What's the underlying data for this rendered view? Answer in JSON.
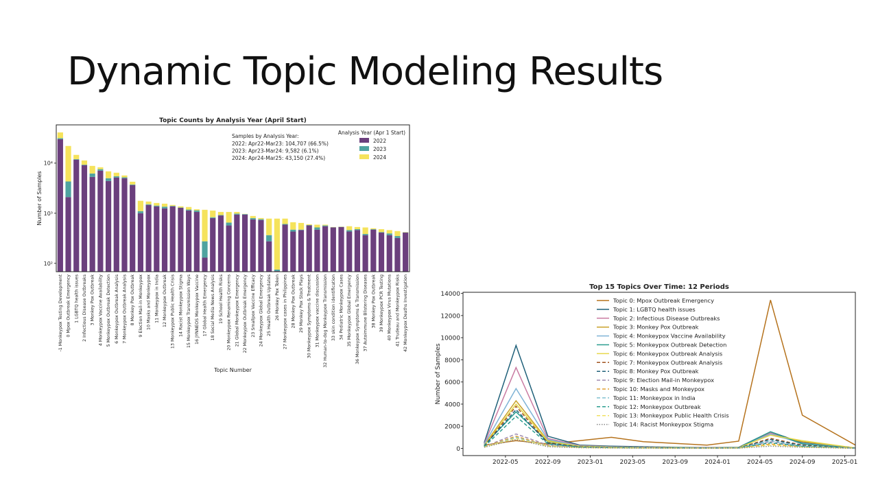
{
  "title": "Dynamic Topic Modeling Results",
  "chart_data": [
    {
      "type": "bar",
      "stacked": true,
      "log_scale": true,
      "grid": false,
      "title": "Topic Counts by Analysis Year (April Start)",
      "x_label": "Topic Number",
      "y_label": "Number of Samples",
      "categories": [
        "-1 Monkeypox Testing Development",
        "0 Mpox Outbreak Emergency",
        "1 LGBTQ health issues",
        "2 Infectious Disease Outbreaks",
        "3 Monkey Pox Outbreak",
        "4 Monkeypox Vaccine Availability",
        "5 Monkeypox Outbreak Detection",
        "6 Monkeypox Outbreak Analysis",
        "7 Monkeypox Outbreak Analysis",
        "8 Monkey Pox Outbreak",
        "9 Election Mail-in Monkeypox",
        "10 Masks and Monkeypox",
        "11 Monkeypox in India",
        "12 Monkeypox Outbreak",
        "13 Monkeypox Public Health Crisis",
        "14 Racist Monkeypox Stigma",
        "15 Monkeypox Transmission Ways",
        "16 JYNNEOS Monkeypox Vaccine",
        "17 Global Health Emergency",
        "18 Social Media News Analysis",
        "19 School Health Risks",
        "20 Monkeypox Renaming Concerns",
        "21 Global Monkeypox Emergency",
        "22 Monkeypox Outbreak Emergency",
        "23 Smallpox Vaccine Efficacy",
        "24 Monkeypox Global Emergency",
        "25 Health Outbreak Updates",
        "26 Monkey Pox Token",
        "27 Monkeypox cases in Philippines",
        "28 Monkey Pox Outbreak",
        "29 Monkey Pox Stock Plays",
        "30 Monkeypox Symptoms & Treatment",
        "31 Monkeypox vaccine discussion",
        "32 Human-to-dog Monkeypox Transmission",
        "33 skin condition identification",
        "34 Pediatric Monkeypox Cases",
        "35 Monkeypox Global Emergency",
        "36 Monkeypox Symptoms & Transmission",
        "37 Autoimmune Blistering Diseases",
        "38 Monkey Pox Outbreak",
        "39 Monkeypox PCR Testing",
        "40 Monkeypox Virus Mutations",
        "41 Trudeau and Monkeypox Risks",
        "42 Monkeypox Deaths Investigation"
      ],
      "series": [
        {
          "name": "2022",
          "color": "#6b3f7d",
          "values": [
            30000,
            2100,
            11700,
            9100,
            5300,
            7060,
            4400,
            5160,
            5000,
            3650,
            1000,
            1460,
            1370,
            1250,
            1370,
            1280,
            1130,
            1060,
            130,
            800,
            900,
            570,
            940,
            940,
            750,
            730,
            275,
            70,
            590,
            430,
            460,
            570,
            470,
            550,
            520,
            530,
            430,
            460,
            365,
            470,
            410,
            365,
            320,
            410
          ]
        },
        {
          "name": "2023",
          "color": "#4fa3a0",
          "values": [
            1500,
            2200,
            300,
            200,
            900,
            500,
            600,
            300,
            200,
            100,
            100,
            50,
            50,
            100,
            30,
            20,
            50,
            80,
            145,
            30,
            20,
            80,
            40,
            20,
            50,
            30,
            90,
            5,
            20,
            40,
            10,
            10,
            50,
            20,
            5,
            5,
            30,
            20,
            20,
            10,
            10,
            30,
            30,
            5
          ]
        },
        {
          "name": "2024",
          "color": "#f5e35c",
          "values": [
            9500,
            17700,
            2600,
            2000,
            2600,
            700,
            1850,
            970,
            470,
            500,
            670,
            200,
            180,
            200,
            60,
            70,
            150,
            60,
            895,
            300,
            140,
            410,
            80,
            10,
            80,
            40,
            415,
            705,
            170,
            190,
            170,
            20,
            70,
            20,
            5,
            5,
            90,
            50,
            135,
            20,
            60,
            65,
            90,
            5
          ]
        }
      ],
      "ylim": [
        68,
        58000
      ],
      "yticks": [
        {
          "value": 100,
          "label": "10²"
        },
        {
          "value": 1000,
          "label": "10³"
        },
        {
          "value": 10000,
          "label": "10⁴"
        }
      ],
      "legend": "upper right",
      "legend_title": "Analysis Year (Apr 1 Start)",
      "annotation": {
        "title": "Samples by Analysis Year:",
        "lines": [
          "2022: Apr22-Mar23: 104,707 (66.5%)",
          "2023: Apr23-Mar24: 9,582 (6.1%)",
          "2024: Apr24-Mar25: 43,150 (27.4%)"
        ]
      }
    },
    {
      "type": "line",
      "grid": false,
      "title": "Top 15 Topics Over Time: 12 Periods",
      "y_label": "Number of Samples",
      "x": [
        "2022-03",
        "2022-06",
        "2022-09",
        "2022-12",
        "2023-03",
        "2023-06",
        "2023-09",
        "2023-12",
        "2024-03",
        "2024-06",
        "2024-09",
        "2025-02"
      ],
      "xlim": [
        "2022-01",
        "2025-02"
      ],
      "xticks": [
        "2022-05",
        "2022-09",
        "2023-01",
        "2023-05",
        "2023-09",
        "2024-01",
        "2024-05",
        "2024-09",
        "2025-01"
      ],
      "ylim": [
        -650,
        14100
      ],
      "yticks": [
        0,
        2000,
        4000,
        6000,
        8000,
        10000,
        12000,
        14000
      ],
      "legend": "upper center",
      "series": [
        {
          "name": "Topic 0: Mpox Outbreak Emergency",
          "color": "#b5721c",
          "linestyle": "solid",
          "values": [
            300,
            700,
            400,
            700,
            1000,
            600,
            450,
            300,
            650,
            13400,
            3000,
            300
          ]
        },
        {
          "name": "Topic 1: LGBTQ health issues",
          "color": "#1f6079",
          "linestyle": "solid",
          "values": [
            500,
            9300,
            1100,
            300,
            200,
            150,
            100,
            80,
            100,
            1500,
            500,
            50
          ]
        },
        {
          "name": "Topic 2: Infectious Disease Outbreaks",
          "color": "#c97ba2",
          "linestyle": "solid",
          "values": [
            400,
            7300,
            900,
            250,
            150,
            100,
            80,
            60,
            80,
            1400,
            400,
            40
          ]
        },
        {
          "name": "Topic 3: Monkey Pox Outbreak",
          "color": "#c9a22a",
          "linestyle": "solid",
          "values": [
            300,
            4300,
            700,
            200,
            120,
            80,
            60,
            50,
            70,
            1200,
            600,
            50
          ]
        },
        {
          "name": "Topic 4: Monkeypox Vaccine Availability",
          "color": "#7fb3d6",
          "linestyle": "solid",
          "values": [
            350,
            5400,
            800,
            220,
            130,
            90,
            70,
            50,
            70,
            1300,
            450,
            40
          ]
        },
        {
          "name": "Topic 5: Monkeypox Outbreak Detection",
          "color": "#2a9d8f",
          "linestyle": "solid",
          "values": [
            300,
            3300,
            600,
            180,
            100,
            70,
            60,
            40,
            60,
            1500,
            400,
            30
          ]
        },
        {
          "name": "Topic 6: Monkeypox Outbreak Analysis",
          "color": "#e6d84a",
          "linestyle": "solid",
          "values": [
            250,
            4000,
            650,
            190,
            110,
            80,
            60,
            45,
            60,
            1200,
            700,
            40
          ]
        },
        {
          "name": "Topic 7: Monkeypox Outbreak Analysis",
          "color": "#a0521d",
          "linestyle": "dashed",
          "values": [
            200,
            3800,
            500,
            150,
            90,
            60,
            50,
            40,
            50,
            900,
            300,
            30
          ]
        },
        {
          "name": "Topic 8: Monkey Pox Outbreak",
          "color": "#1f6079",
          "linestyle": "dashed",
          "values": [
            200,
            3500,
            450,
            140,
            80,
            60,
            50,
            40,
            50,
            800,
            250,
            30
          ]
        },
        {
          "name": "Topic 9: Election Mail-in Monkeypox",
          "color": "#a08cb0",
          "linestyle": "dashed",
          "values": [
            150,
            1300,
            300,
            100,
            60,
            50,
            40,
            30,
            40,
            600,
            200,
            20
          ]
        },
        {
          "name": "Topic 10: Masks and Monkeypox",
          "color": "#e0a030",
          "linestyle": "dashed",
          "values": [
            150,
            1100,
            250,
            90,
            50,
            40,
            30,
            25,
            35,
            400,
            150,
            20
          ]
        },
        {
          "name": "Topic 11: Monkeypox in India",
          "color": "#80c0d0",
          "linestyle": "dashed",
          "values": [
            120,
            1000,
            220,
            80,
            50,
            40,
            30,
            25,
            30,
            700,
            200,
            15
          ]
        },
        {
          "name": "Topic 12: Monkeypox Outbreak",
          "color": "#2a9d8f",
          "linestyle": "dashed",
          "values": [
            150,
            2900,
            400,
            120,
            70,
            50,
            40,
            30,
            45,
            500,
            180,
            20
          ]
        },
        {
          "name": "Topic 13: Monkeypox Public Health Crisis",
          "color": "#f0e060",
          "linestyle": "dashed",
          "values": [
            120,
            900,
            200,
            70,
            40,
            30,
            25,
            20,
            30,
            300,
            120,
            15
          ]
        },
        {
          "name": "Topic 14: Racist Monkeypox Stigma",
          "color": "#888888",
          "linestyle": "dotted",
          "values": [
            100,
            800,
            150,
            60,
            40,
            30,
            20,
            15,
            25,
            200,
            100,
            10
          ]
        }
      ]
    }
  ]
}
